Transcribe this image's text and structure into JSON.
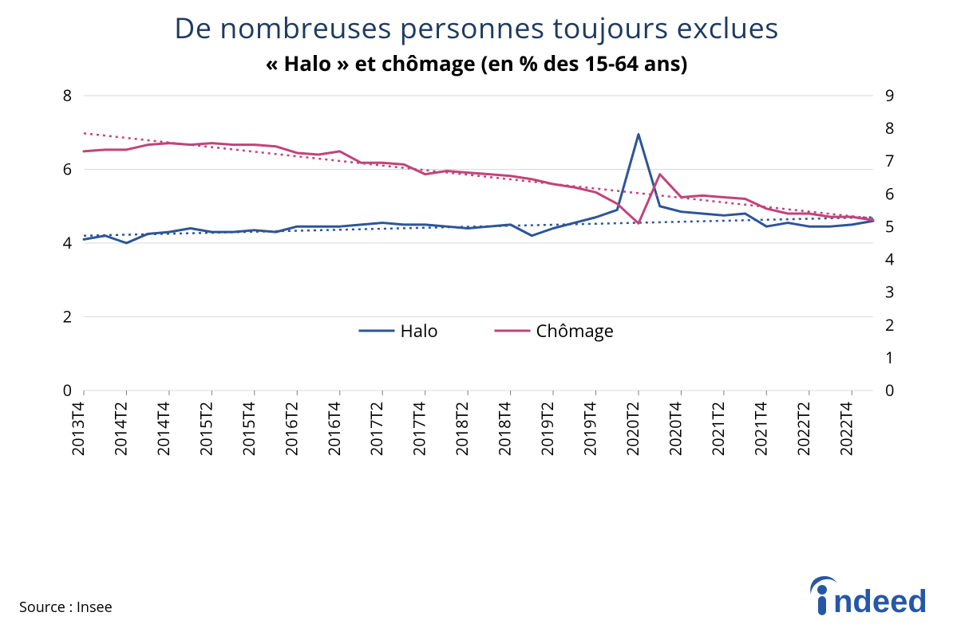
{
  "title": "De nombreuses personnes toujours exclues",
  "subtitle": "« Halo » et chômage (en % des 15-64 ans)",
  "source": "Source : Insee",
  "logo_text": "indeed",
  "chart": {
    "type": "line",
    "background_color": "#ffffff",
    "grid_color": "#d9d9d9",
    "grid_width": 1,
    "title_color": "#1e3a5f",
    "subtitle_color": "#000000",
    "axis_label_fontsize": 20,
    "title_fontsize": 36,
    "subtitle_fontsize": 26,
    "line_width": 3,
    "trend_dash": "3,5",
    "categories": [
      "2013T4",
      "2014T1",
      "2014T2",
      "2014T3",
      "2014T4",
      "2015T1",
      "2015T2",
      "2015T3",
      "2015T4",
      "2016T1",
      "2016T2",
      "2016T3",
      "2016T4",
      "2017T1",
      "2017T2",
      "2017T3",
      "2017T4",
      "2018T1",
      "2018T2",
      "2018T3",
      "2018T4",
      "2019T1",
      "2019T2",
      "2019T3",
      "2019T4",
      "2020T1",
      "2020T2",
      "2020T3",
      "2020T4",
      "2021T1",
      "2021T2",
      "2021T3",
      "2021T4",
      "2022T1",
      "2022T2",
      "2022T3",
      "2022T4",
      "2023T1"
    ],
    "x_ticks_shown": [
      "2013T4",
      "2014T2",
      "2014T4",
      "2015T2",
      "2015T4",
      "2016T2",
      "2016T4",
      "2017T2",
      "2017T4",
      "2018T2",
      "2018T4",
      "2019T2",
      "2019T4",
      "2020T2",
      "2020T4",
      "2021T2",
      "2021T4",
      "2022T2",
      "2022T4"
    ],
    "left_axis": {
      "label_series": "Halo",
      "ylim": [
        0,
        8
      ],
      "ticks": [
        0,
        2,
        4,
        6,
        8
      ]
    },
    "right_axis": {
      "label_series": "Chômage",
      "ylim": [
        0,
        9
      ],
      "ticks": [
        0,
        1,
        2,
        3,
        4,
        5,
        6,
        7,
        8,
        9
      ]
    },
    "series": [
      {
        "name": "Halo",
        "color": "#2d5597",
        "axis": "left",
        "values": [
          4.1,
          4.2,
          4.0,
          4.25,
          4.3,
          4.4,
          4.3,
          4.3,
          4.35,
          4.3,
          4.45,
          4.45,
          4.45,
          4.5,
          4.55,
          4.5,
          4.5,
          4.45,
          4.4,
          4.45,
          4.5,
          4.2,
          4.4,
          4.55,
          4.7,
          4.9,
          6.95,
          5.0,
          4.85,
          4.8,
          4.75,
          4.8,
          4.45,
          4.55,
          4.45,
          4.45,
          4.5,
          4.6
        ],
        "trend": {
          "start": 4.2,
          "end": 4.7
        }
      },
      {
        "name": "Chômage",
        "color": "#c0447a",
        "axis": "right",
        "values": [
          7.3,
          7.35,
          7.35,
          7.5,
          7.55,
          7.5,
          7.55,
          7.5,
          7.5,
          7.45,
          7.25,
          7.2,
          7.3,
          6.95,
          6.95,
          6.9,
          6.6,
          6.7,
          6.65,
          6.6,
          6.55,
          6.45,
          6.3,
          6.2,
          6.05,
          5.7,
          5.1,
          6.6,
          5.9,
          5.95,
          5.9,
          5.85,
          5.55,
          5.4,
          5.4,
          5.3,
          5.3,
          5.2
        ],
        "trend": {
          "start": 7.85,
          "end": 5.25
        }
      }
    ],
    "legend": {
      "items": [
        "Halo",
        "Chômage"
      ],
      "position": "bottom-center"
    }
  }
}
